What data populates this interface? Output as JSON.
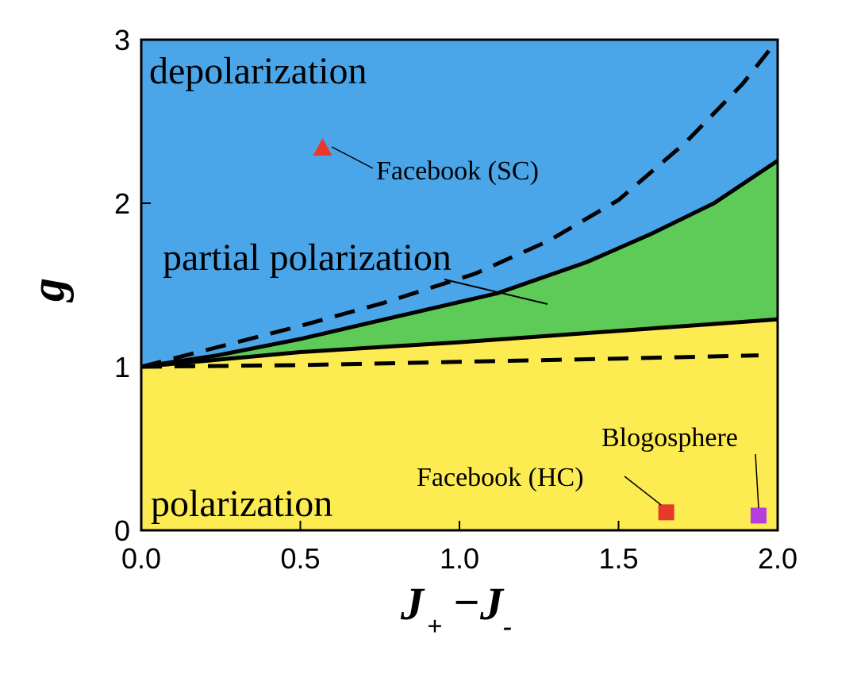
{
  "chart_data": {
    "type": "area",
    "title": "",
    "xlabel": {
      "main": "J",
      "sub1": "+",
      "minus": "−",
      "sub2": "-"
    },
    "ylabel": "g",
    "xlim": [
      0.0,
      2.0
    ],
    "ylim": [
      0,
      3
    ],
    "xticks": [
      "0.0",
      "0.5",
      "1.0",
      "1.5",
      "2.0"
    ],
    "yticks": [
      "0",
      "1",
      "2",
      "3"
    ],
    "grid": false,
    "colors": {
      "depolarization": "#4aa6e9",
      "partial": "#5ecb59",
      "polarization": "#fcec52",
      "red": "#e8382a",
      "purple": "#b53de0"
    },
    "regions": [
      {
        "label": "depolarization"
      },
      {
        "label": "partial polarization"
      },
      {
        "label": "polarization"
      }
    ],
    "boundaries": {
      "upper_solid": {
        "x": [
          0,
          0.24,
          0.5,
          0.81,
          1.12,
          1.4,
          1.6,
          1.8,
          2.0
        ],
        "y": [
          1.0,
          1.07,
          1.17,
          1.31,
          1.45,
          1.64,
          1.81,
          2.0,
          2.26
        ]
      },
      "lower_solid": {
        "x": [
          0,
          0.5,
          1.0,
          1.5,
          2.0
        ],
        "y": [
          1.0,
          1.09,
          1.15,
          1.22,
          1.29
        ]
      },
      "upper_dashed": {
        "x": [
          0,
          0.24,
          0.5,
          0.76,
          1.05,
          1.28,
          1.5,
          1.71,
          1.89,
          2.0
        ],
        "y": [
          1.0,
          1.12,
          1.25,
          1.39,
          1.57,
          1.77,
          2.02,
          2.37,
          2.73,
          3.0
        ]
      },
      "lower_dashed": {
        "x": [
          0,
          0.5,
          1.0,
          1.5,
          1.94
        ],
        "y": [
          1.0,
          1.01,
          1.03,
          1.05,
          1.07
        ]
      }
    },
    "points": [
      {
        "label": "Facebook (SC)",
        "x": 0.57,
        "y": 2.34,
        "marker": "triangle",
        "color": "#e8382a"
      },
      {
        "label": "Facebook (HC)",
        "x": 1.65,
        "y": 0.11,
        "marker": "square",
        "color": "#e8382a"
      },
      {
        "label": "Blogosphere",
        "x": 1.94,
        "y": 0.09,
        "marker": "square",
        "color": "#b53de0"
      }
    ]
  }
}
